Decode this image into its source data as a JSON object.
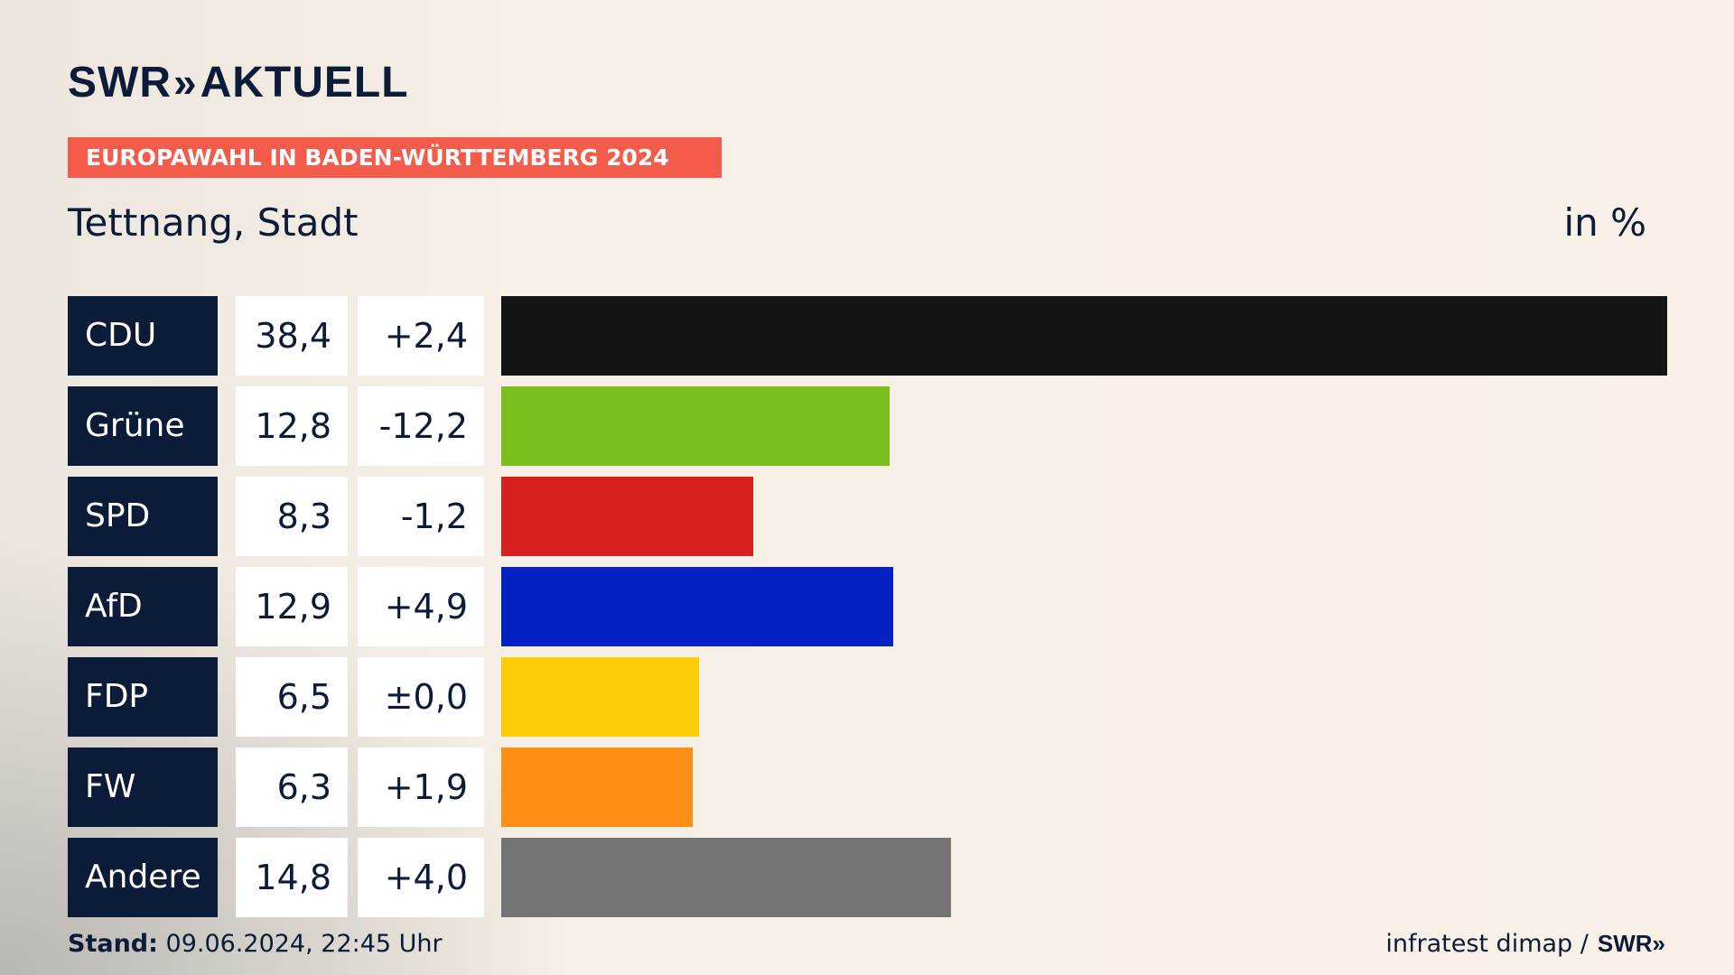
{
  "brand": {
    "logo_text": "SWR",
    "logo_chevrons": "»",
    "logo_suffix": "AKTUELL"
  },
  "banner": "EUROPAWAHL IN BADEN-WÜRTTEMBERG 2024",
  "subtitle": "Tettnang, Stadt",
  "unit": "in %",
  "footer": {
    "stand_label": "Stand:",
    "stand_value": "09.06.2024, 22:45 Uhr",
    "source": "infratest dimap /",
    "source_logo": "SWR»"
  },
  "chart_data": {
    "type": "bar",
    "orientation": "horizontal",
    "categories": [
      "CDU",
      "Grüne",
      "SPD",
      "AfD",
      "FDP",
      "FW",
      "Andere"
    ],
    "values": [
      38.4,
      12.8,
      8.3,
      12.9,
      6.5,
      6.3,
      14.8
    ],
    "value_labels": [
      "38,4",
      "12,8",
      "8,3",
      "12,9",
      "6,5",
      "6,3",
      "14,8"
    ],
    "diff_labels": [
      "+2,4",
      "-12,2",
      "-1,2",
      "+4,9",
      "±0,0",
      "+1,9",
      "+4,0"
    ],
    "colors": [
      "#141414",
      "#7abd1c",
      "#d71f1f",
      "#0521c4",
      "#ffcc0a",
      "#fd8f17",
      "#737373"
    ],
    "xlim": [
      0,
      38.4
    ],
    "grid": false,
    "legend": "none"
  }
}
